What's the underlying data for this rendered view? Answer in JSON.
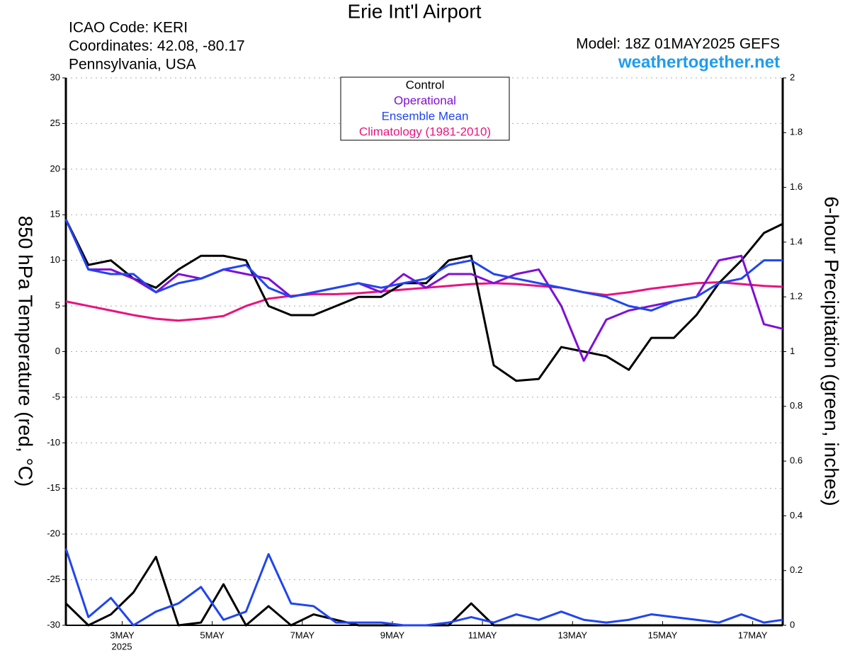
{
  "chart_data": {
    "type": "line",
    "title": "Erie Int'l Airport",
    "info": [
      "ICAO Code: KERI",
      "Coordinates: 42.08, -80.17",
      "Pennsylvania, USA"
    ],
    "model": "Model: 18Z 01MAY2025 GEFS",
    "site": "weathertogether.net",
    "ylabel": "850 hPa Temperature (red, °C)",
    "y2label": "6-hour Precipitation (green, inches)",
    "x": [
      0,
      12,
      24,
      36,
      48,
      60,
      72,
      84,
      96,
      108,
      120,
      132,
      144,
      156,
      168,
      180,
      192,
      204,
      216,
      228,
      240,
      252,
      264,
      276,
      288,
      300,
      312,
      324,
      336,
      348,
      360,
      372,
      382
    ],
    "xlim": [
      0,
      382
    ],
    "xticks": [
      {
        "value": 30,
        "label": "3MAY"
      },
      {
        "value": 78,
        "label": "5MAY"
      },
      {
        "value": 126,
        "label": "7MAY"
      },
      {
        "value": 174,
        "label": "9MAY"
      },
      {
        "value": 222,
        "label": "11MAY"
      },
      {
        "value": 270,
        "label": "13MAY"
      },
      {
        "value": 318,
        "label": "15MAY"
      },
      {
        "value": 366,
        "label": "17MAY"
      }
    ],
    "year_label": "2025",
    "ylim": [
      -30,
      30
    ],
    "yticks": [
      -30,
      -25,
      -20,
      -15,
      -10,
      -5,
      0,
      5,
      10,
      15,
      20,
      25,
      30
    ],
    "y2lim": [
      0,
      2
    ],
    "y2ticks": [
      0,
      0.2,
      0.4,
      0.6,
      0.8,
      1,
      1.2,
      1.4,
      1.6,
      1.8,
      2
    ],
    "grid": true,
    "series": [
      {
        "name": "Climatology (1981-2010)",
        "color": "#e8137f",
        "width": 3,
        "values": [
          5.5,
          5,
          4.5,
          4,
          3.6,
          3.4,
          3.6,
          3.9,
          5,
          5.8,
          6.1,
          6.3,
          6.3,
          6.4,
          6.6,
          6.8,
          7,
          7.2,
          7.4,
          7.5,
          7.4,
          7.2,
          7,
          6.5,
          6.2,
          6.5,
          6.9,
          7.2,
          7.5,
          7.6,
          7.4,
          7.2,
          7.1
        ]
      },
      {
        "name": "Control",
        "color": "#000000",
        "width": 3,
        "values": [
          14.5,
          9.5,
          10,
          8,
          7,
          9,
          10.5,
          10.5,
          10,
          5,
          4,
          4,
          5,
          6,
          6,
          7.5,
          7.5,
          10,
          10.5,
          -1.5,
          -3.2,
          -3,
          0.5,
          0,
          -0.5,
          -2,
          1.5,
          1.5,
          4,
          7.5,
          10,
          13,
          14
        ]
      },
      {
        "name": "Operational",
        "color": "#7f0fd6",
        "width": 3,
        "values": [
          14.5,
          9,
          9,
          8,
          6.5,
          8.5,
          8,
          9,
          8.5,
          8,
          6,
          6.5,
          7,
          7.5,
          6.5,
          8.5,
          7,
          8.5,
          8.5,
          7.5,
          8.5,
          9,
          5,
          -1,
          3.5,
          4.5,
          5,
          5.5,
          6,
          10,
          10.5,
          3,
          2.5
        ]
      },
      {
        "name": "Ensemble Mean",
        "color": "#2045f0",
        "width": 3,
        "values": [
          14.5,
          9,
          8.5,
          8.5,
          6.5,
          7.5,
          8,
          9,
          9.5,
          7,
          6,
          6.5,
          7,
          7.5,
          7,
          7.5,
          8,
          9.5,
          10,
          8.5,
          8,
          7.5,
          7,
          6.5,
          6,
          5,
          4.5,
          5.5,
          6,
          7.5,
          8,
          10,
          10
        ]
      },
      {
        "name": "Control",
        "color": "#000000",
        "width": 3,
        "axis": "y2",
        "values": [
          0.08,
          0,
          0.04,
          0.12,
          0.25,
          0,
          0.01,
          0.15,
          0,
          0.07,
          0,
          0.04,
          0.02,
          0,
          0,
          0,
          0,
          0,
          0.08,
          0,
          0,
          0,
          0,
          0,
          0,
          0,
          0,
          0,
          0,
          0,
          0,
          0,
          0
        ]
      },
      {
        "name": "Ensemble Mean",
        "color": "#2045f0",
        "width": 3,
        "axis": "y2",
        "values": [
          0.28,
          0.03,
          0.1,
          0,
          0.05,
          0.08,
          0.14,
          0.02,
          0.05,
          0.26,
          0.08,
          0.07,
          0.01,
          0.01,
          0.01,
          0,
          0,
          0.01,
          0.03,
          0.01,
          0.04,
          0.02,
          0.05,
          0.02,
          0.01,
          0.02,
          0.04,
          0.03,
          0.02,
          0.01,
          0.04,
          0.01,
          0.02
        ]
      }
    ],
    "legend": [
      1,
      2,
      3,
      0
    ]
  }
}
